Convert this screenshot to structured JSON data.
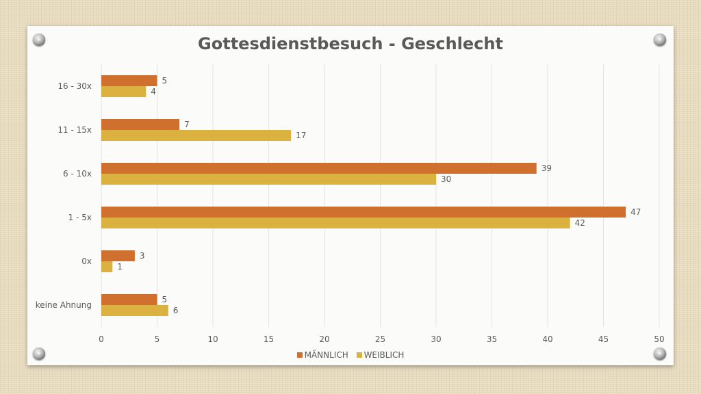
{
  "chart_data": {
    "type": "bar",
    "orientation": "horizontal",
    "title": "Gottesdienstbesuch - Geschlecht",
    "categories": [
      "16 - 30x",
      "11 - 15x",
      "6 - 10x",
      "1 - 5x",
      "0x",
      "keine Ahnung"
    ],
    "series": [
      {
        "name": "MÄNNLICH",
        "color": "#d0702f",
        "values": [
          5,
          7,
          39,
          47,
          3,
          5
        ]
      },
      {
        "name": "WEIBLICH",
        "color": "#dbb13f",
        "values": [
          4,
          17,
          30,
          42,
          1,
          6
        ]
      }
    ],
    "xlim": [
      0,
      50
    ],
    "xticks": [
      "0",
      "5",
      "10",
      "15",
      "20",
      "25",
      "30",
      "35",
      "40",
      "45",
      "50"
    ],
    "grid": true,
    "legend_position": "bottom"
  }
}
